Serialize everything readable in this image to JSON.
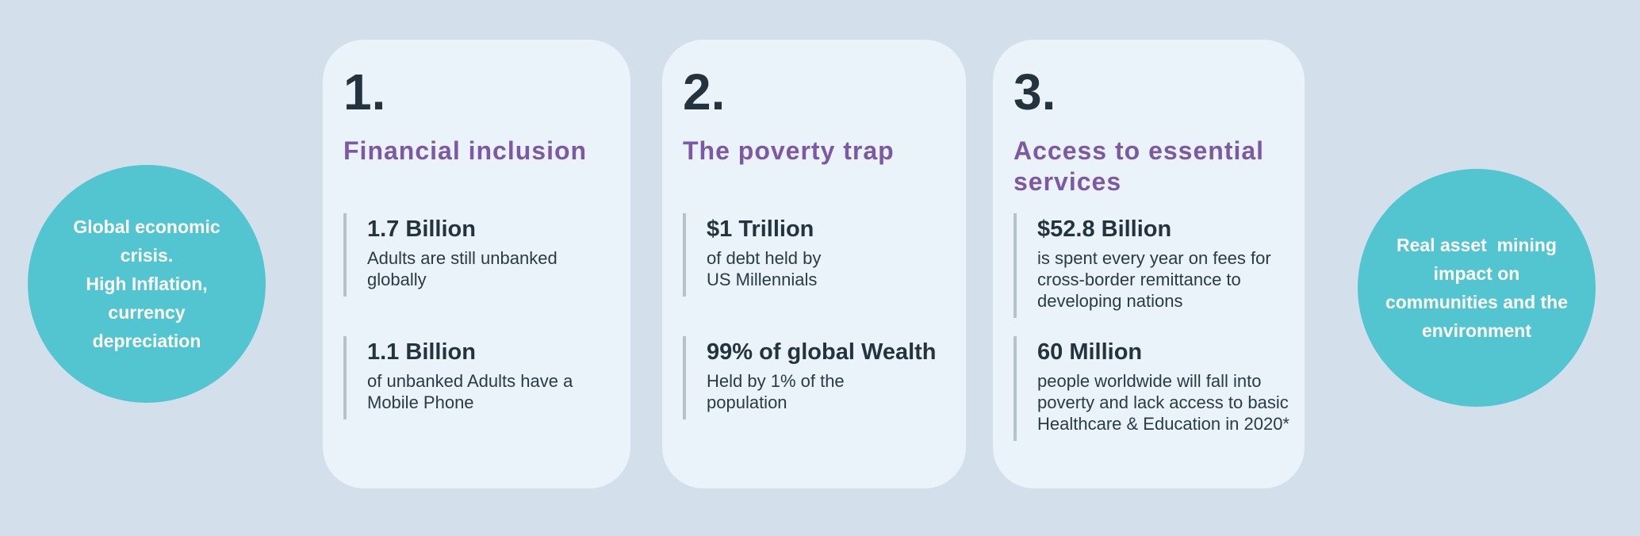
{
  "colors": {
    "page_background": "#d3e0ec",
    "card_background": "#e9f3f9",
    "circle_background": "#52c5d1",
    "accent_purple": "#7d59a4",
    "text_dark": "#25333e",
    "stat_bar_gray": "#b6c2ca",
    "circle_text": "#ffffff"
  },
  "left_circle": {
    "text": "Global economic\ncrisis.\nHigh Inflation,\ncurrency\ndepreciation"
  },
  "right_circle": {
    "text": "Real asset  mining\nimpact on\ncommunities and the\nenvironment"
  },
  "cards": [
    {
      "number": "1.",
      "title": "Financial inclusion",
      "stats": [
        {
          "value": "1.7 Billion",
          "description": "Adults are still unbanked\nglobally"
        },
        {
          "value": "1.1 Billion",
          "description": "of unbanked Adults have a\nMobile Phone"
        }
      ]
    },
    {
      "number": "2.",
      "title": "The poverty trap",
      "stats": [
        {
          "value": "$1 Trillion",
          "description": "of debt held by\nUS Millennials"
        },
        {
          "value": "99% of global Wealth",
          "description": "Held by 1% of the\npopulation"
        }
      ]
    },
    {
      "number": "3.",
      "title": "Access to essential\nservices",
      "stats": [
        {
          "value": "$52.8 Billion",
          "description": "is spent every year on fees for\ncross-border remittance to\ndeveloping nations"
        },
        {
          "value": "60 Million",
          "description": "people worldwide will fall into\npoverty and lack access to basic\nHealthcare & Education in 2020*"
        }
      ]
    }
  ]
}
